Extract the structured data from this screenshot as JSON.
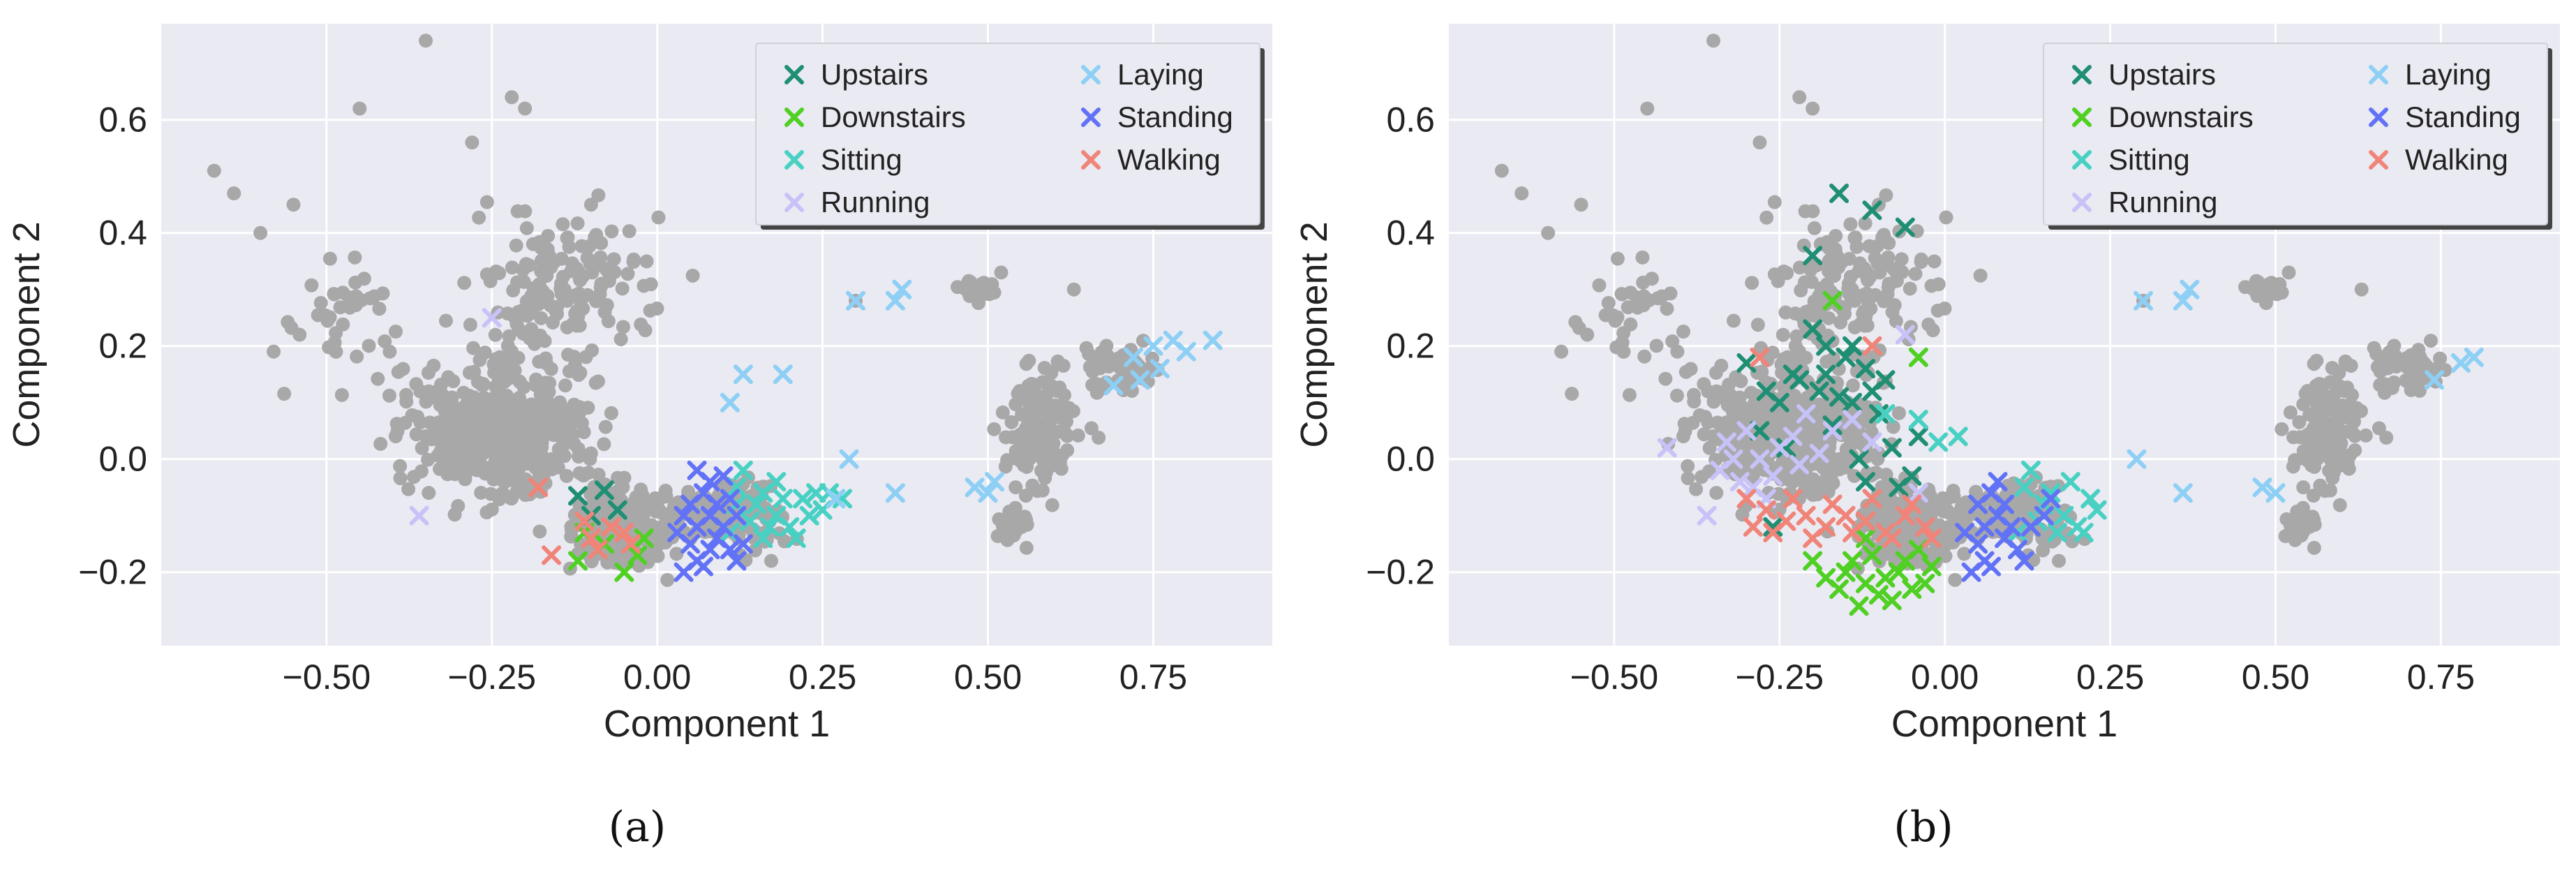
{
  "figure": {
    "captions": [
      "(a)",
      "(b)"
    ]
  },
  "colors": {
    "background": "#eaeaf2",
    "grid": "#ffffff",
    "unlabeled": "#a8a8a8",
    "Upstairs": "#1f8f73",
    "Downstairs": "#4fd023",
    "Sitting": "#48d1c3",
    "Running": "#c7c2f7",
    "Laying": "#8dcff5",
    "Standing": "#6272f6",
    "Walking": "#f08479"
  },
  "chart_data": [
    {
      "type": "scatter",
      "panel": "a",
      "xlabel": "Component 1",
      "ylabel": "Component 2",
      "xlim": [
        -0.75,
        0.93
      ],
      "ylim": [
        -0.33,
        0.77
      ],
      "xticks": [
        "−0.50",
        "−0.25",
        "0.00",
        "0.25",
        "0.50",
        "0.75"
      ],
      "yticks": [
        "−0.2",
        "0.0",
        "0.2",
        "0.4",
        "0.6"
      ],
      "grid": true,
      "legend": {
        "placement": "top-right",
        "columns": 2,
        "entries": [
          "Upstairs",
          "Downstairs",
          "Sitting",
          "Running",
          "Laying",
          "Standing",
          "Walking"
        ]
      },
      "series": [
        {
          "name": "Upstairs",
          "marker": "x",
          "points": [
            [
              -0.12,
              -0.065
            ],
            [
              -0.08,
              -0.055
            ],
            [
              -0.1,
              -0.1
            ],
            [
              -0.06,
              -0.09
            ]
          ]
        },
        {
          "name": "Downstairs",
          "marker": "x",
          "points": [
            [
              -0.11,
              -0.13
            ],
            [
              -0.08,
              -0.15
            ],
            [
              -0.05,
              -0.2
            ],
            [
              -0.03,
              -0.17
            ],
            [
              -0.07,
              -0.12
            ],
            [
              -0.12,
              -0.18
            ],
            [
              -0.02,
              -0.14
            ]
          ]
        },
        {
          "name": "Sitting",
          "marker": "x",
          "points": [
            [
              0.12,
              -0.05
            ],
            [
              0.15,
              -0.08
            ],
            [
              0.18,
              -0.1
            ],
            [
              0.2,
              -0.12
            ],
            [
              0.22,
              -0.07
            ],
            [
              0.25,
              -0.09
            ],
            [
              0.28,
              -0.07
            ],
            [
              0.16,
              -0.14
            ],
            [
              0.13,
              -0.02
            ],
            [
              0.18,
              -0.04
            ],
            [
              0.21,
              -0.14
            ],
            [
              0.24,
              -0.06
            ],
            [
              0.14,
              -0.11
            ],
            [
              0.19,
              -0.07
            ],
            [
              0.11,
              -0.13
            ],
            [
              0.17,
              -0.12
            ],
            [
              0.23,
              -0.1
            ],
            [
              0.26,
              -0.06
            ],
            [
              0.12,
              -0.08
            ],
            [
              0.16,
              -0.06
            ]
          ]
        },
        {
          "name": "Running",
          "marker": "x",
          "points": [
            [
              -0.25,
              0.25
            ],
            [
              -0.36,
              -0.1
            ]
          ]
        },
        {
          "name": "Laying",
          "marker": "x",
          "points": [
            [
              0.13,
              0.15
            ],
            [
              0.11,
              0.1
            ],
            [
              0.19,
              0.15
            ],
            [
              0.3,
              0.28
            ],
            [
              0.36,
              0.28
            ],
            [
              0.37,
              0.3
            ],
            [
              0.27,
              -0.07
            ],
            [
              0.29,
              0.0
            ],
            [
              0.36,
              -0.06
            ],
            [
              0.48,
              -0.05
            ],
            [
              0.51,
              -0.04
            ],
            [
              0.5,
              -0.06
            ],
            [
              0.69,
              0.13
            ],
            [
              0.72,
              0.18
            ],
            [
              0.75,
              0.2
            ],
            [
              0.78,
              0.21
            ],
            [
              0.8,
              0.19
            ],
            [
              0.84,
              0.21
            ],
            [
              0.76,
              0.16
            ],
            [
              0.73,
              0.14
            ]
          ]
        },
        {
          "name": "Standing",
          "marker": "x",
          "points": [
            [
              0.05,
              -0.08
            ],
            [
              0.07,
              -0.06
            ],
            [
              0.08,
              -0.1
            ],
            [
              0.09,
              -0.14
            ],
            [
              0.06,
              -0.18
            ],
            [
              0.04,
              -0.2
            ],
            [
              0.1,
              -0.12
            ],
            [
              0.11,
              -0.16
            ],
            [
              0.12,
              -0.18
            ],
            [
              0.08,
              -0.04
            ],
            [
              0.06,
              -0.12
            ],
            [
              0.05,
              -0.15
            ],
            [
              0.09,
              -0.08
            ],
            [
              0.1,
              -0.03
            ],
            [
              0.07,
              -0.19
            ],
            [
              0.03,
              -0.13
            ],
            [
              0.04,
              -0.1
            ],
            [
              0.11,
              -0.07
            ],
            [
              0.13,
              -0.15
            ],
            [
              0.12,
              -0.1
            ],
            [
              0.08,
              -0.16
            ],
            [
              0.06,
              -0.02
            ]
          ]
        },
        {
          "name": "Walking",
          "marker": "x",
          "points": [
            [
              -0.18,
              -0.05
            ],
            [
              -0.1,
              -0.14
            ],
            [
              -0.07,
              -0.12
            ],
            [
              -0.09,
              -0.16
            ],
            [
              -0.05,
              -0.13
            ],
            [
              -0.16,
              -0.17
            ],
            [
              -0.04,
              -0.15
            ],
            [
              -0.11,
              -0.11
            ]
          ]
        }
      ]
    },
    {
      "type": "scatter",
      "panel": "b",
      "xlabel": "Component 1",
      "ylabel": "Component 2",
      "xlim": [
        -0.75,
        0.93
      ],
      "ylim": [
        -0.33,
        0.77
      ],
      "xticks": [
        "−0.50",
        "−0.25",
        "0.00",
        "0.25",
        "0.50",
        "0.75"
      ],
      "yticks": [
        "−0.2",
        "0.0",
        "0.2",
        "0.4",
        "0.6"
      ],
      "grid": true,
      "legend": {
        "placement": "top-right",
        "columns": 2,
        "entries": [
          "Upstairs",
          "Downstairs",
          "Sitting",
          "Running",
          "Laying",
          "Standing",
          "Walking"
        ]
      },
      "series": [
        {
          "name": "Upstairs",
          "marker": "x",
          "points": [
            [
              -0.16,
              0.47
            ],
            [
              -0.11,
              0.44
            ],
            [
              -0.06,
              0.41
            ],
            [
              -0.2,
              0.36
            ],
            [
              -0.18,
              0.2
            ],
            [
              -0.15,
              0.18
            ],
            [
              -0.22,
              0.14
            ],
            [
              -0.12,
              0.16
            ],
            [
              -0.25,
              0.1
            ],
            [
              -0.19,
              0.12
            ],
            [
              -0.14,
              0.1
            ],
            [
              -0.1,
              0.08
            ],
            [
              -0.28,
              0.05
            ],
            [
              -0.24,
              0.02
            ],
            [
              -0.17,
              0.06
            ],
            [
              -0.08,
              0.02
            ],
            [
              -0.05,
              -0.03
            ],
            [
              -0.12,
              -0.04
            ],
            [
              -0.3,
              0.17
            ],
            [
              -0.27,
              0.12
            ],
            [
              -0.21,
              0.08
            ],
            [
              -0.16,
              0.11
            ],
            [
              -0.09,
              0.14
            ],
            [
              -0.13,
              0.0
            ],
            [
              -0.04,
              0.04
            ],
            [
              -0.23,
              0.15
            ],
            [
              -0.26,
              -0.12
            ],
            [
              -0.07,
              -0.05
            ],
            [
              -0.11,
              0.12
            ],
            [
              -0.18,
              0.15
            ],
            [
              -0.2,
              0.23
            ],
            [
              -0.14,
              0.2
            ]
          ]
        },
        {
          "name": "Downstairs",
          "marker": "x",
          "points": [
            [
              -0.17,
              0.28
            ],
            [
              -0.04,
              0.18
            ],
            [
              -0.2,
              -0.18
            ],
            [
              -0.15,
              -0.2
            ],
            [
              -0.12,
              -0.22
            ],
            [
              -0.1,
              -0.24
            ],
            [
              -0.13,
              -0.26
            ],
            [
              -0.07,
              -0.2
            ],
            [
              -0.05,
              -0.23
            ],
            [
              -0.02,
              -0.19
            ],
            [
              -0.16,
              -0.23
            ],
            [
              -0.11,
              -0.17
            ],
            [
              -0.08,
              -0.25
            ],
            [
              -0.04,
              -0.16
            ],
            [
              -0.14,
              -0.18
            ],
            [
              -0.09,
              -0.21
            ],
            [
              -0.18,
              -0.21
            ],
            [
              -0.06,
              -0.18
            ],
            [
              -0.12,
              -0.14
            ],
            [
              -0.03,
              -0.22
            ]
          ]
        },
        {
          "name": "Sitting",
          "marker": "x",
          "points": [
            [
              0.12,
              -0.05
            ],
            [
              0.15,
              -0.08
            ],
            [
              0.18,
              -0.1
            ],
            [
              0.2,
              -0.12
            ],
            [
              0.22,
              -0.07
            ],
            [
              0.17,
              -0.13
            ],
            [
              0.13,
              -0.02
            ],
            [
              0.19,
              -0.04
            ],
            [
              0.21,
              -0.13
            ],
            [
              0.14,
              -0.11
            ],
            [
              0.16,
              -0.06
            ],
            [
              0.11,
              -0.13
            ],
            [
              0.23,
              -0.09
            ],
            [
              -0.09,
              0.08
            ],
            [
              -0.04,
              0.07
            ],
            [
              -0.01,
              0.03
            ],
            [
              0.02,
              0.04
            ]
          ]
        },
        {
          "name": "Running",
          "marker": "x",
          "points": [
            [
              -0.36,
              -0.1
            ],
            [
              -0.34,
              -0.02
            ],
            [
              -0.31,
              -0.04
            ],
            [
              -0.28,
              0.0
            ],
            [
              -0.25,
              0.02
            ],
            [
              -0.22,
              -0.01
            ],
            [
              -0.33,
              0.03
            ],
            [
              -0.29,
              -0.05
            ],
            [
              -0.26,
              -0.03
            ],
            [
              -0.23,
              0.04
            ],
            [
              -0.19,
              0.01
            ],
            [
              -0.3,
              0.05
            ],
            [
              -0.21,
              0.08
            ],
            [
              -0.17,
              0.05
            ],
            [
              -0.14,
              0.07
            ],
            [
              -0.11,
              0.03
            ],
            [
              -0.27,
              -0.07
            ],
            [
              -0.32,
              0.0
            ],
            [
              -0.06,
              0.22
            ],
            [
              -0.04,
              -0.06
            ],
            [
              -0.42,
              0.02
            ]
          ]
        },
        {
          "name": "Laying",
          "marker": "x",
          "points": [
            [
              0.3,
              0.28
            ],
            [
              0.36,
              0.28
            ],
            [
              0.37,
              0.3
            ],
            [
              0.29,
              0.0
            ],
            [
              0.36,
              -0.06
            ],
            [
              0.48,
              -0.05
            ],
            [
              0.5,
              -0.06
            ],
            [
              0.74,
              0.14
            ],
            [
              0.78,
              0.17
            ],
            [
              0.8,
              0.18
            ]
          ]
        },
        {
          "name": "Standing",
          "marker": "x",
          "points": [
            [
              0.05,
              -0.08
            ],
            [
              0.07,
              -0.06
            ],
            [
              0.08,
              -0.1
            ],
            [
              0.09,
              -0.14
            ],
            [
              0.06,
              -0.18
            ],
            [
              0.04,
              -0.2
            ],
            [
              0.1,
              -0.12
            ],
            [
              0.11,
              -0.16
            ],
            [
              0.08,
              -0.04
            ],
            [
              0.06,
              -0.12
            ],
            [
              0.05,
              -0.15
            ],
            [
              0.09,
              -0.08
            ],
            [
              0.07,
              -0.19
            ],
            [
              0.03,
              -0.13
            ],
            [
              0.12,
              -0.18
            ],
            [
              0.13,
              -0.12
            ],
            [
              0.16,
              -0.07
            ],
            [
              0.15,
              -0.1
            ]
          ]
        },
        {
          "name": "Walking",
          "marker": "x",
          "points": [
            [
              -0.3,
              -0.07
            ],
            [
              -0.27,
              -0.09
            ],
            [
              -0.24,
              -0.11
            ],
            [
              -0.21,
              -0.1
            ],
            [
              -0.18,
              -0.12
            ],
            [
              -0.15,
              -0.1
            ],
            [
              -0.12,
              -0.11
            ],
            [
              -0.09,
              -0.13
            ],
            [
              -0.06,
              -0.1
            ],
            [
              -0.03,
              -0.12
            ],
            [
              -0.26,
              -0.13
            ],
            [
              -0.2,
              -0.14
            ],
            [
              -0.14,
              -0.13
            ],
            [
              -0.08,
              -0.14
            ],
            [
              -0.23,
              -0.07
            ],
            [
              -0.17,
              -0.08
            ],
            [
              -0.11,
              -0.07
            ],
            [
              -0.05,
              -0.08
            ],
            [
              -0.28,
              0.18
            ],
            [
              -0.11,
              0.2
            ],
            [
              -0.29,
              -0.12
            ],
            [
              -0.02,
              -0.14
            ]
          ]
        }
      ]
    }
  ]
}
